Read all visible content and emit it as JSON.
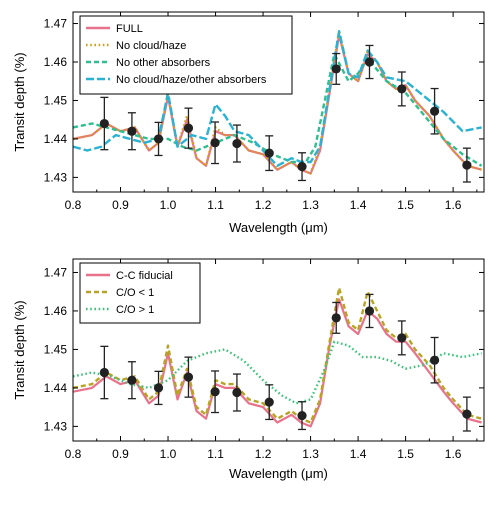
{
  "chart_data": [
    {
      "type": "line",
      "xlabel": "Wavelength (μm)",
      "ylabel": "Transit depth (%)",
      "xlim": [
        0.8,
        1.665
      ],
      "ylim": [
        1.4262,
        1.473
      ],
      "xticks": [
        "0.8",
        "0.9",
        "1.0",
        "1.1",
        "1.2",
        "1.3",
        "1.4",
        "1.5",
        "1.6"
      ],
      "yticks": [
        "1.43",
        "1.44",
        "1.45",
        "1.46",
        "1.47"
      ],
      "legend_position": "top-left",
      "series": [
        {
          "name": "FULL",
          "color": "#e8728c",
          "style": "solid",
          "x": [
            0.8,
            0.84,
            0.87,
            0.9,
            0.93,
            0.96,
            0.98,
            1.0,
            1.02,
            1.04,
            1.06,
            1.08,
            1.1,
            1.12,
            1.14,
            1.17,
            1.2,
            1.23,
            1.26,
            1.28,
            1.3,
            1.32,
            1.34,
            1.36,
            1.38,
            1.4,
            1.42,
            1.44,
            1.46,
            1.48,
            1.5,
            1.52,
            1.55,
            1.58,
            1.6,
            1.63,
            1.66
          ],
          "y": [
            1.44,
            1.441,
            1.444,
            1.442,
            1.443,
            1.437,
            1.439,
            1.451,
            1.438,
            1.445,
            1.435,
            1.433,
            1.442,
            1.441,
            1.441,
            1.437,
            1.436,
            1.432,
            1.434,
            1.432,
            1.431,
            1.437,
            1.452,
            1.467,
            1.457,
            1.455,
            1.462,
            1.46,
            1.455,
            1.453,
            1.454,
            1.45,
            1.446,
            1.44,
            1.437,
            1.433,
            1.432
          ]
        },
        {
          "name": "No cloud/haze",
          "color": "#d4a017",
          "style": "dotted",
          "x": [
            0.8,
            0.84,
            0.87,
            0.9,
            0.93,
            0.96,
            0.98,
            1.0,
            1.02,
            1.04,
            1.06,
            1.08,
            1.1,
            1.12,
            1.14,
            1.17,
            1.2,
            1.23,
            1.26,
            1.28,
            1.3,
            1.32,
            1.34,
            1.36,
            1.38,
            1.4,
            1.42,
            1.44,
            1.46,
            1.48,
            1.5,
            1.52,
            1.55,
            1.58,
            1.6,
            1.63,
            1.66
          ],
          "y": [
            1.44,
            1.441,
            1.444,
            1.442,
            1.443,
            1.437,
            1.439,
            1.452,
            1.438,
            1.446,
            1.435,
            1.433,
            1.443,
            1.441,
            1.441,
            1.437,
            1.436,
            1.432,
            1.434,
            1.432,
            1.431,
            1.438,
            1.453,
            1.468,
            1.457,
            1.455,
            1.463,
            1.46,
            1.455,
            1.453,
            1.454,
            1.45,
            1.446,
            1.44,
            1.437,
            1.433,
            1.432
          ]
        },
        {
          "name": "No other absorbers",
          "color": "#2dbf90",
          "style": "dashed",
          "x": [
            0.8,
            0.84,
            0.87,
            0.9,
            0.93,
            0.96,
            1.0,
            1.03,
            1.06,
            1.1,
            1.14,
            1.18,
            1.22,
            1.26,
            1.29,
            1.31,
            1.33,
            1.35,
            1.38,
            1.4,
            1.42,
            1.44,
            1.46,
            1.5,
            1.54,
            1.58,
            1.62,
            1.66
          ],
          "y": [
            1.443,
            1.444,
            1.443,
            1.442,
            1.441,
            1.44,
            1.44,
            1.438,
            1.437,
            1.439,
            1.441,
            1.439,
            1.436,
            1.434,
            1.434,
            1.438,
            1.45,
            1.462,
            1.455,
            1.457,
            1.461,
            1.458,
            1.455,
            1.452,
            1.446,
            1.44,
            1.436,
            1.433
          ]
        },
        {
          "name": "No cloud/haze/other absorbers",
          "color": "#29b2d1",
          "style": "longdash",
          "x": [
            0.8,
            0.83,
            0.86,
            0.89,
            0.92,
            0.95,
            0.98,
            1.0,
            1.02,
            1.05,
            1.08,
            1.1,
            1.12,
            1.14,
            1.17,
            1.2,
            1.23,
            1.26,
            1.28,
            1.3,
            1.32,
            1.34,
            1.36,
            1.38,
            1.4,
            1.42,
            1.44,
            1.46,
            1.5,
            1.54,
            1.58,
            1.62,
            1.66
          ],
          "y": [
            1.438,
            1.437,
            1.438,
            1.441,
            1.44,
            1.439,
            1.44,
            1.452,
            1.438,
            1.441,
            1.44,
            1.449,
            1.446,
            1.442,
            1.441,
            1.437,
            1.433,
            1.435,
            1.434,
            1.434,
            1.438,
            1.453,
            1.468,
            1.457,
            1.456,
            1.463,
            1.46,
            1.456,
            1.455,
            1.451,
            1.447,
            1.442,
            1.443
          ]
        }
      ],
      "points": {
        "x": [
          0.866,
          0.924,
          0.98,
          1.043,
          1.099,
          1.145,
          1.213,
          1.282,
          1.354,
          1.424,
          1.492,
          1.561,
          1.629
        ],
        "y": [
          1.444,
          1.442,
          1.44,
          1.4428,
          1.439,
          1.4388,
          1.4363,
          1.4328,
          1.4582,
          1.46,
          1.453,
          1.4472,
          1.4332
        ],
        "err": [
          0.0068,
          0.0048,
          0.0043,
          0.0052,
          0.0054,
          0.0048,
          0.0045,
          0.0036,
          0.004,
          0.0043,
          0.0044,
          0.0059,
          0.0044
        ]
      }
    },
    {
      "type": "line",
      "xlabel": "Wavelength (μm)",
      "ylabel": "Transit depth (%)",
      "xlim": [
        0.8,
        1.665
      ],
      "ylim": [
        1.4262,
        1.4735
      ],
      "xticks": [
        "0.8",
        "0.9",
        "1.0",
        "1.1",
        "1.2",
        "1.3",
        "1.4",
        "1.5",
        "1.6"
      ],
      "yticks": [
        "1.43",
        "1.44",
        "1.45",
        "1.46",
        "1.47"
      ],
      "legend_position": "top-left",
      "series": [
        {
          "name": "C-C fiducial",
          "color": "#e8728c",
          "style": "solid",
          "x": [
            0.8,
            0.84,
            0.87,
            0.9,
            0.93,
            0.96,
            0.98,
            1.0,
            1.02,
            1.04,
            1.06,
            1.08,
            1.1,
            1.12,
            1.14,
            1.17,
            1.2,
            1.23,
            1.26,
            1.28,
            1.3,
            1.32,
            1.34,
            1.36,
            1.38,
            1.4,
            1.42,
            1.44,
            1.46,
            1.48,
            1.5,
            1.52,
            1.55,
            1.58,
            1.6,
            1.63,
            1.66
          ],
          "y": [
            1.439,
            1.44,
            1.443,
            1.441,
            1.442,
            1.436,
            1.438,
            1.449,
            1.437,
            1.444,
            1.434,
            1.432,
            1.441,
            1.44,
            1.44,
            1.436,
            1.435,
            1.431,
            1.433,
            1.431,
            1.43,
            1.436,
            1.451,
            1.463,
            1.456,
            1.454,
            1.46,
            1.458,
            1.454,
            1.452,
            1.452,
            1.449,
            1.444,
            1.439,
            1.436,
            1.432,
            1.431
          ]
        },
        {
          "name": "C/O < 1",
          "color": "#b8a424",
          "style": "dashed",
          "x": [
            0.8,
            0.84,
            0.87,
            0.9,
            0.93,
            0.96,
            0.98,
            1.0,
            1.02,
            1.04,
            1.06,
            1.08,
            1.1,
            1.12,
            1.14,
            1.17,
            1.2,
            1.23,
            1.26,
            1.28,
            1.3,
            1.32,
            1.34,
            1.36,
            1.38,
            1.4,
            1.42,
            1.44,
            1.46,
            1.48,
            1.5,
            1.52,
            1.55,
            1.58,
            1.6,
            1.63,
            1.66
          ],
          "y": [
            1.44,
            1.441,
            1.444,
            1.442,
            1.443,
            1.437,
            1.439,
            1.451,
            1.438,
            1.445,
            1.435,
            1.433,
            1.442,
            1.441,
            1.441,
            1.437,
            1.436,
            1.432,
            1.434,
            1.432,
            1.431,
            1.437,
            1.452,
            1.466,
            1.457,
            1.455,
            1.465,
            1.46,
            1.455,
            1.453,
            1.454,
            1.45,
            1.446,
            1.44,
            1.437,
            1.433,
            1.432
          ]
        },
        {
          "name": "C/O > 1",
          "color": "#3cc47a",
          "style": "dotted",
          "x": [
            0.8,
            0.84,
            0.88,
            0.92,
            0.96,
            1.0,
            1.04,
            1.08,
            1.12,
            1.16,
            1.2,
            1.24,
            1.27,
            1.3,
            1.33,
            1.35,
            1.38,
            1.41,
            1.44,
            1.47,
            1.5,
            1.54,
            1.58,
            1.62,
            1.66
          ],
          "y": [
            1.443,
            1.444,
            1.443,
            1.441,
            1.44,
            1.442,
            1.447,
            1.449,
            1.45,
            1.447,
            1.442,
            1.438,
            1.436,
            1.437,
            1.445,
            1.452,
            1.451,
            1.448,
            1.448,
            1.447,
            1.445,
            1.446,
            1.449,
            1.448,
            1.449
          ]
        }
      ],
      "points": {
        "x": [
          0.866,
          0.924,
          0.98,
          1.043,
          1.099,
          1.145,
          1.213,
          1.282,
          1.354,
          1.424,
          1.492,
          1.561,
          1.629
        ],
        "y": [
          1.444,
          1.442,
          1.44,
          1.4428,
          1.439,
          1.4388,
          1.4363,
          1.4328,
          1.4582,
          1.46,
          1.453,
          1.4472,
          1.4332
        ],
        "err": [
          0.0068,
          0.0048,
          0.0043,
          0.0052,
          0.0054,
          0.0048,
          0.0045,
          0.0036,
          0.004,
          0.0043,
          0.0044,
          0.0059,
          0.0044
        ]
      }
    }
  ]
}
